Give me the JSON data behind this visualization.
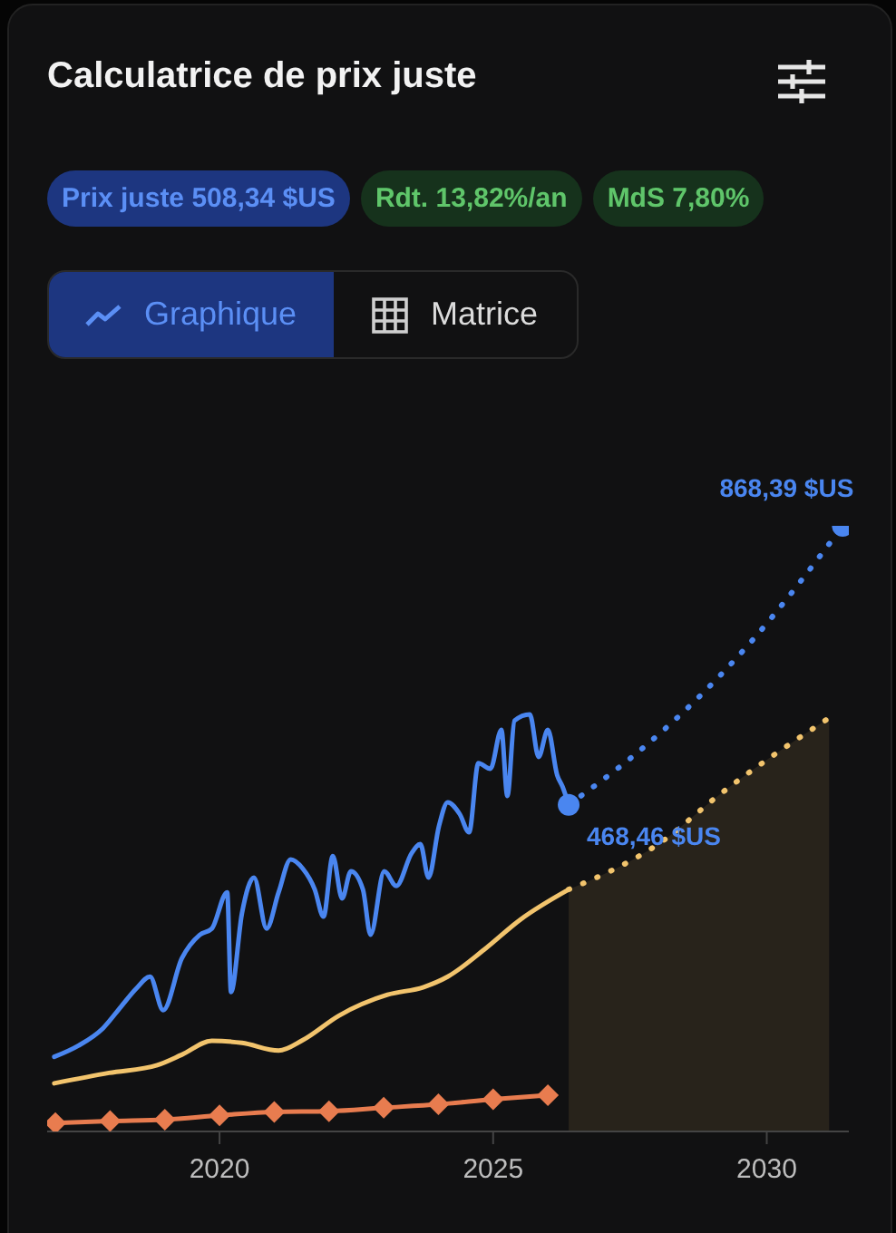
{
  "chart_data": {
    "type": "line",
    "title": "Calculatrice de prix juste",
    "annotations": [
      "Prix juste 508,34 $US",
      "Rdt. 13,82%/an",
      "MdS 7,80%",
      "Graphique",
      "Matrice"
    ],
    "xlim": [
      2016.85,
      2031.5
    ],
    "xticks": [
      2020,
      2025,
      2030
    ],
    "tick_labels": "x",
    "legend": false,
    "series": [
      {
        "color": "#4a86f0",
        "marker": "none",
        "line_style": "solid",
        "x": [
          2016.98,
          2017.42,
          2017.87,
          2018.2,
          2018.48,
          2018.73,
          2018.97,
          2019.31,
          2019.64,
          2019.86,
          2020.14,
          2020.21,
          2020.41,
          2020.63,
          2020.86,
          2021.08,
          2021.3,
          2021.52,
          2021.74,
          2021.9,
          2022.07,
          2022.24,
          2022.4,
          2022.62,
          2022.76,
          2023.01,
          2023.23,
          2023.51,
          2023.67,
          2023.82,
          2024.01,
          2024.17,
          2024.39,
          2024.56,
          2024.73,
          2024.95,
          2025.15,
          2025.26,
          2025.39,
          2025.67,
          2025.83,
          2026.0,
          2026.17,
          2026.27,
          2026.38
        ],
        "values": [
          107,
          123,
          148,
          179,
          205,
          222,
          174,
          248,
          282,
          291,
          343,
          200,
          313,
          364,
          291,
          343,
          390,
          377,
          347,
          308,
          395,
          334,
          373,
          347,
          282,
          373,
          352,
          399,
          412,
          364,
          438,
          472,
          455,
          429,
          528,
          520,
          576,
          481,
          589,
          598,
          537,
          576,
          511,
          494,
          468.46
        ]
      },
      {
        "color": "#4a86f0",
        "marker": "none",
        "line_style": "dotted",
        "x": [
          2026.38,
          2027.6,
          2028.71,
          2029.7,
          2031.39
        ],
        "values": [
          468.46,
          541,
          619,
          701,
          868.39
        ]
      },
      {
        "type": "scatter",
        "color": "#4a86f0",
        "marker": "circle",
        "x": [
          2026.38,
          2031.39
        ],
        "values": [
          468.46,
          868.39
        ],
        "value_labels": [
          "468,46 $US",
          "868,39 $US"
        ]
      },
      {
        "color": "#f2c46d",
        "marker": "none",
        "line_style": "solid",
        "x": [
          2016.98,
          2017.98,
          2018.86,
          2019.31,
          2019.86,
          2020.41,
          2021.08,
          2021.52,
          2022.18,
          2023.07,
          2023.73,
          2024.17,
          2024.84,
          2025.5,
          2026.38
        ],
        "values": [
          69,
          84,
          95,
          110,
          130,
          127,
          116,
          131,
          166,
          196,
          207,
          222,
          261,
          304,
          347
        ]
      },
      {
        "type": "area",
        "color": "#f2c46d",
        "marker": "none",
        "line_style": "dotted",
        "x": [
          2026.38,
          2028.16,
          2029.04,
          2031.14
        ],
        "values": [
          347,
          420,
          477,
          593
        ]
      },
      {
        "color": "#e87c4f",
        "marker": "diamond",
        "line_style": "solid",
        "x": [
          2017,
          2018,
          2019,
          2020,
          2021,
          2022,
          2023,
          2024,
          2025,
          2026
        ],
        "values": [
          12,
          15,
          17,
          23,
          28,
          29,
          34,
          39,
          46,
          52
        ]
      }
    ]
  }
}
